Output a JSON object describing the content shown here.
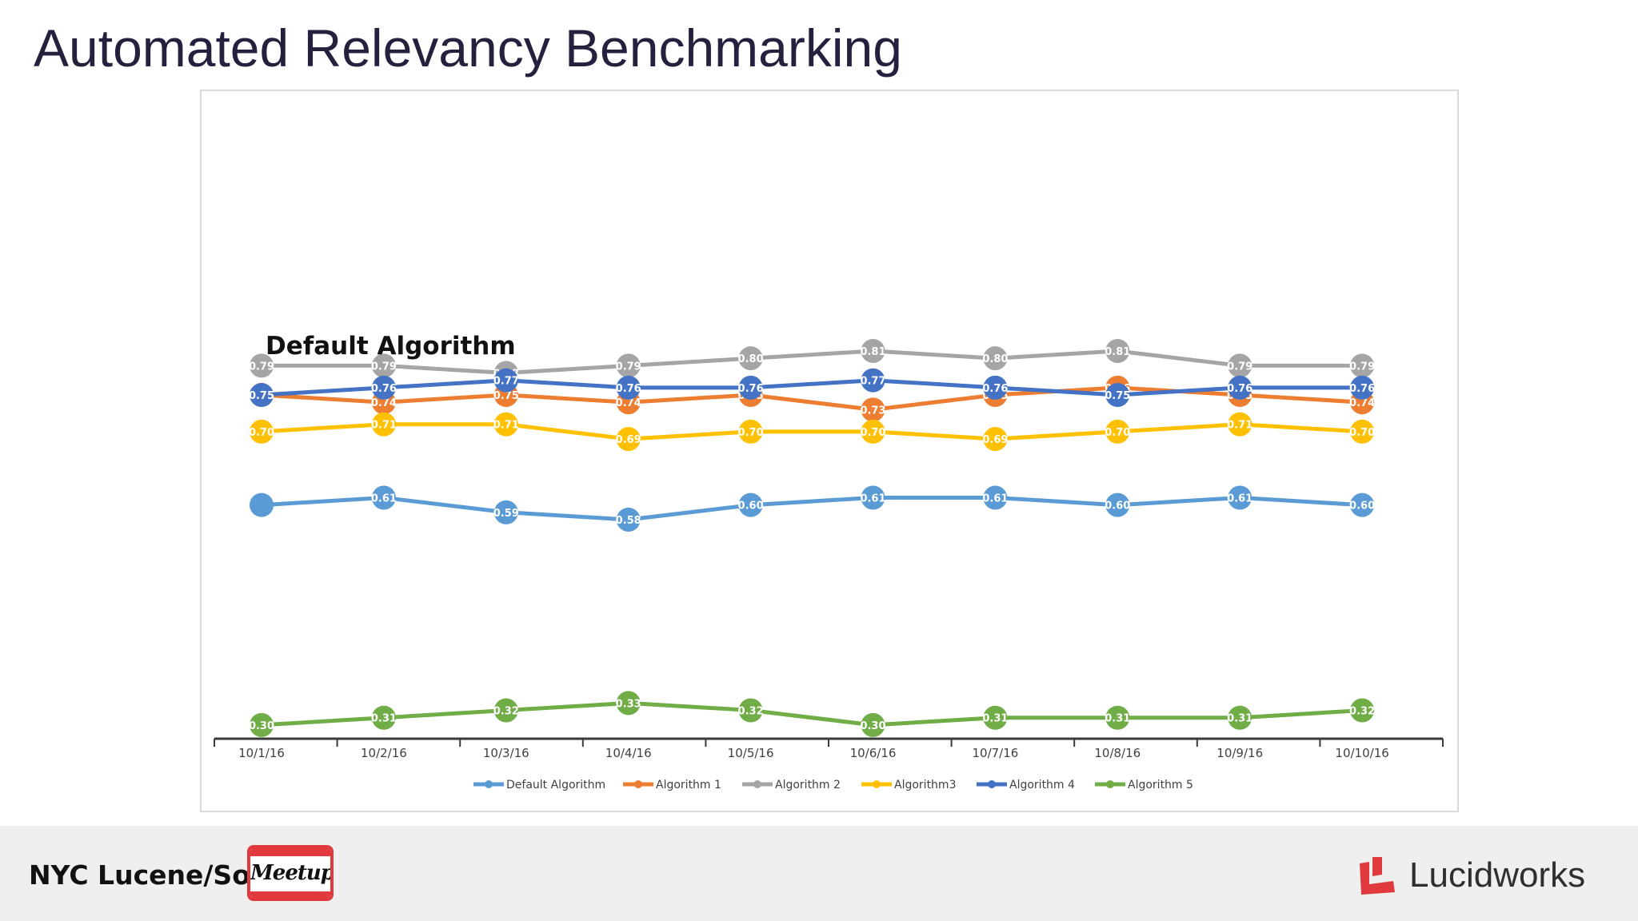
{
  "slide": {
    "title": "Automated Relevancy Benchmarking"
  },
  "footer": {
    "left_text": "NYC Lucene/Solr",
    "meetup_badge": "Meetup",
    "brand_text": "Lucidworks",
    "brand_color": "#e0393e"
  },
  "chart_data": {
    "type": "line",
    "categories": [
      "10/1/16",
      "10/2/16",
      "10/3/16",
      "10/4/16",
      "10/5/16",
      "10/6/16",
      "10/7/16",
      "10/8/16",
      "10/9/16",
      "10/10/16"
    ],
    "annotation": "Default Algorithm",
    "legend_position": "bottom",
    "grid": false,
    "ylim": [
      0.2,
      0.9
    ],
    "series": [
      {
        "name": "Default Algorithm",
        "color": "#5b9bd5",
        "values": [
          0.6,
          0.61,
          0.59,
          0.58,
          0.6,
          0.61,
          0.61,
          0.6,
          0.61,
          0.6
        ],
        "labels": [
          "",
          "0.61",
          "0.59",
          "0.58",
          "0.60",
          "0.61",
          "0.61",
          "0.60",
          "0.61",
          "0.60"
        ]
      },
      {
        "name": "Algorithm 1",
        "color": "#ed7d31",
        "values": [
          0.75,
          0.74,
          0.75,
          0.74,
          0.75,
          0.73,
          0.75,
          0.76,
          0.75,
          0.74
        ],
        "labels": [
          "0.75",
          "0.74",
          "0.75",
          "0.74",
          "0.75",
          "0.73",
          "0.75",
          "0.76",
          "0.75",
          "0.74"
        ]
      },
      {
        "name": "Algorithm 2",
        "color": "#a5a5a5",
        "values": [
          0.79,
          0.79,
          0.78,
          0.79,
          0.8,
          0.81,
          0.8,
          0.81,
          0.79,
          0.79
        ],
        "labels": [
          "0.79",
          "0.79",
          "0.78",
          "0.79",
          "0.80",
          "0.81",
          "0.80",
          "0.81",
          "0.79",
          "0.79"
        ]
      },
      {
        "name": "Algorithm3",
        "color": "#ffc000",
        "values": [
          0.7,
          0.71,
          0.71,
          0.69,
          0.7,
          0.7,
          0.69,
          0.7,
          0.71,
          0.7
        ],
        "labels": [
          "0.70",
          "0.71",
          "0.71",
          "0.69",
          "0.70",
          "0.70",
          "0.69",
          "0.70",
          "0.71",
          "0.70"
        ]
      },
      {
        "name": "Algorithm 4",
        "color": "#4472c4",
        "values": [
          0.75,
          0.76,
          0.77,
          0.76,
          0.76,
          0.77,
          0.76,
          0.75,
          0.76,
          0.76
        ],
        "labels": [
          "0.75",
          "0.76",
          "0.77",
          "0.76",
          "0.76",
          "0.77",
          "0.76",
          "0.75",
          "0.76",
          "0.76"
        ]
      },
      {
        "name": "Algorithm 5",
        "color": "#70ad47",
        "values": [
          0.3,
          0.31,
          0.32,
          0.33,
          0.32,
          0.3,
          0.31,
          0.31,
          0.31,
          0.32
        ],
        "labels": [
          "0.30",
          "0.31",
          "0.32",
          "0.33",
          "0.32",
          "0.30",
          "0.31",
          "0.31",
          "0.31",
          "0.32"
        ]
      }
    ]
  }
}
